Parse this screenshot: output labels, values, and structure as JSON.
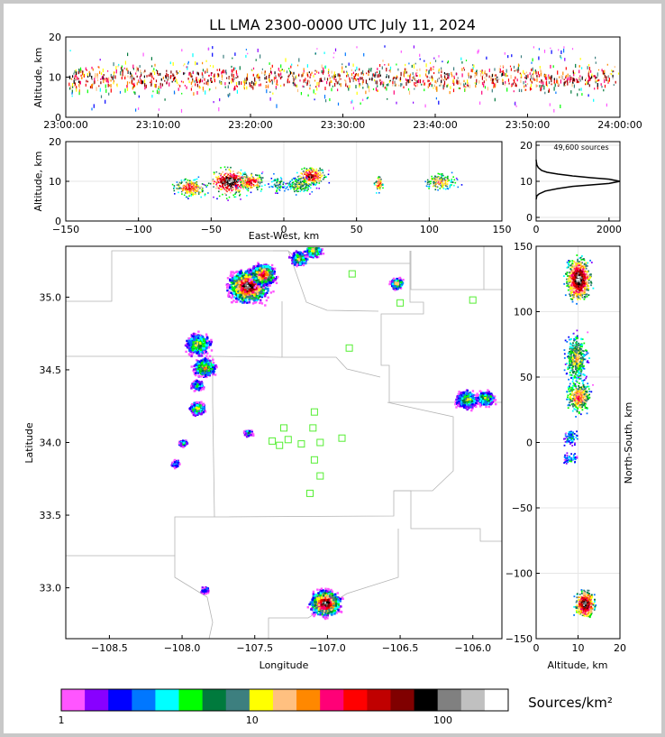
{
  "title": "LL LMA 2300-0000 UTC July 11, 2024",
  "panels": {
    "time_height": {
      "ylabel": "Altitude, km",
      "yticks": [
        "0",
        "10",
        "20"
      ],
      "xticks": [
        "23:00:00",
        "23:10:00",
        "23:20:00",
        "23:30:00",
        "23:40:00",
        "23:50:00",
        "24:00:00"
      ]
    },
    "ew_height": {
      "ylabel": "Altitude, km",
      "xlabel": "East-West, km",
      "yticks": [
        "0",
        "10",
        "20"
      ],
      "xticks": [
        "−150",
        "−100",
        "−50",
        "0",
        "50",
        "100",
        "150"
      ]
    },
    "histogram": {
      "annotation": "49,600 sources",
      "yticks": [
        "0",
        "10",
        "20"
      ],
      "xticks": [
        "0",
        "2000"
      ]
    },
    "plan": {
      "xlabel": "Longitude",
      "ylabel": "Latitude",
      "xticks": [
        "−108.5",
        "−108.0",
        "−107.5",
        "−107.0",
        "−106.5",
        "−106.0"
      ],
      "yticks": [
        "33.0",
        "33.5",
        "34.0",
        "34.5",
        "35.0"
      ]
    },
    "height_ns": {
      "xlabel": "Altitude, km",
      "ylabel": "North-South, km",
      "yticks": [
        "−150",
        "−100",
        "−50",
        "0",
        "50",
        "100",
        "150"
      ],
      "xticks": [
        "0",
        "10",
        "20"
      ]
    }
  },
  "colorbar": {
    "label": "Sources/km²",
    "ticks": [
      "1",
      "10",
      "100"
    ],
    "colors": [
      "#ff55ff",
      "#8800ff",
      "#0000ff",
      "#0077ff",
      "#00ffff",
      "#00ff00",
      "#007a3d",
      "#3d7f7f",
      "#ffff00",
      "#ffc080",
      "#ff8800",
      "#ff0077",
      "#ff0000",
      "#c00000",
      "#800000",
      "#000000",
      "#808080",
      "#c0c0c0",
      "#ffffff"
    ]
  },
  "chart_data": [
    {
      "type": "heatmap",
      "panel": "time_height",
      "x_range": [
        "23:00:00",
        "24:00:00"
      ],
      "ylim": [
        0,
        20
      ],
      "grid": true,
      "band": {
        "center_alt_km": 10,
        "core_range_km": [
          7,
          13
        ],
        "sparse_range_km": [
          2,
          18
        ]
      }
    },
    {
      "type": "heatmap",
      "panel": "ew_height",
      "xlim": [
        -150,
        150
      ],
      "ylim": [
        0,
        20
      ],
      "grid": true,
      "clusters": [
        {
          "x": -65,
          "alt": 8.5,
          "x_spread": 10,
          "alt_spread": 2,
          "peak": 0.75
        },
        {
          "x": -38,
          "alt": 10,
          "x_spread": 12,
          "alt_spread": 3,
          "peak": 1.0
        },
        {
          "x": -23,
          "alt": 10,
          "x_spread": 8,
          "alt_spread": 2,
          "peak": 0.8
        },
        {
          "x": -5,
          "alt": 9.5,
          "x_spread": 5,
          "alt_spread": 2,
          "peak": 0.45
        },
        {
          "x": 18,
          "alt": 11.5,
          "x_spread": 9,
          "alt_spread": 2,
          "peak": 0.85
        },
        {
          "x": 10,
          "alt": 9,
          "x_spread": 10,
          "alt_spread": 2,
          "peak": 0.5
        },
        {
          "x": 65,
          "alt": 9.5,
          "x_spread": 3,
          "alt_spread": 2,
          "peak": 0.7
        },
        {
          "x": 107,
          "alt": 10,
          "x_spread": 10,
          "alt_spread": 2,
          "peak": 0.6
        }
      ]
    },
    {
      "type": "line",
      "panel": "histogram",
      "xlabel": "",
      "ylabel": "",
      "xlim": [
        0,
        2300
      ],
      "ylim": [
        0,
        20
      ],
      "points": [
        [
          0,
          5
        ],
        [
          20,
          6
        ],
        [
          80,
          6.5
        ],
        [
          250,
          7.3
        ],
        [
          600,
          8
        ],
        [
          1000,
          8.6
        ],
        [
          1500,
          9
        ],
        [
          2000,
          9.4
        ],
        [
          2300,
          10
        ],
        [
          2000,
          10.6
        ],
        [
          1500,
          11
        ],
        [
          1000,
          11.5
        ],
        [
          600,
          12
        ],
        [
          300,
          12.5
        ],
        [
          150,
          13
        ],
        [
          60,
          13.8
        ],
        [
          20,
          14.5
        ],
        [
          5,
          15.5
        ],
        [
          0,
          16
        ]
      ]
    },
    {
      "type": "heatmap",
      "panel": "plan",
      "xlim": [
        -108.8,
        -105.8
      ],
      "ylim": [
        32.65,
        35.35
      ],
      "clusters": [
        {
          "lon": -107.55,
          "lat": 35.08,
          "r": 0.09,
          "peak": 1.0
        },
        {
          "lon": -107.45,
          "lat": 35.16,
          "r": 0.06,
          "peak": 0.8
        },
        {
          "lon": -107.2,
          "lat": 35.27,
          "r": 0.04,
          "peak": 0.5
        },
        {
          "lon": -107.1,
          "lat": 35.33,
          "r": 0.04,
          "peak": 0.55
        },
        {
          "lon": -106.53,
          "lat": 35.1,
          "r": 0.03,
          "peak": 0.6
        },
        {
          "lon": -107.9,
          "lat": 34.68,
          "r": 0.06,
          "peak": 0.5
        },
        {
          "lon": -107.85,
          "lat": 34.52,
          "r": 0.05,
          "peak": 0.55
        },
        {
          "lon": -107.9,
          "lat": 34.4,
          "r": 0.03,
          "peak": 0.35
        },
        {
          "lon": -107.9,
          "lat": 34.24,
          "r": 0.035,
          "peak": 0.5
        },
        {
          "lon": -108.0,
          "lat": 34.0,
          "r": 0.02,
          "peak": 0.3
        },
        {
          "lon": -108.05,
          "lat": 33.86,
          "r": 0.02,
          "peak": 0.25
        },
        {
          "lon": -107.55,
          "lat": 34.07,
          "r": 0.02,
          "peak": 0.3
        },
        {
          "lon": -106.05,
          "lat": 34.3,
          "r": 0.05,
          "peak": 0.5
        },
        {
          "lon": -105.92,
          "lat": 34.31,
          "r": 0.04,
          "peak": 0.5
        },
        {
          "lon": -107.02,
          "lat": 32.9,
          "r": 0.07,
          "peak": 1.0
        },
        {
          "lon": -107.85,
          "lat": 32.99,
          "r": 0.02,
          "peak": 0.25
        }
      ],
      "stations": [
        [
          -106.83,
          35.16
        ],
        [
          -106.5,
          34.96
        ],
        [
          -106.0,
          34.98
        ],
        [
          -106.85,
          34.65
        ],
        [
          -107.09,
          34.21
        ],
        [
          -107.3,
          34.1
        ],
        [
          -107.1,
          34.1
        ],
        [
          -107.38,
          34.01
        ],
        [
          -107.27,
          34.02
        ],
        [
          -107.33,
          33.98
        ],
        [
          -107.18,
          33.99
        ],
        [
          -107.05,
          34.0
        ],
        [
          -106.9,
          34.03
        ],
        [
          -107.09,
          33.88
        ],
        [
          -107.05,
          33.77
        ],
        [
          -107.12,
          33.65
        ]
      ]
    },
    {
      "type": "heatmap",
      "panel": "height_ns",
      "xlim": [
        0,
        20
      ],
      "ylim": [
        -150,
        150
      ],
      "grid": true,
      "clusters": [
        {
          "alt": 10,
          "ns": 125,
          "alt_spread": 2.5,
          "ns_spread": 14,
          "peak": 1.0
        },
        {
          "alt": 9.5,
          "ns": 65,
          "alt_spread": 2.2,
          "ns_spread": 16,
          "peak": 0.55
        },
        {
          "alt": 10,
          "ns": 35,
          "alt_spread": 2.5,
          "ns_spread": 10,
          "peak": 0.7
        },
        {
          "alt": 8,
          "ns": 4,
          "alt_spread": 1.5,
          "ns_spread": 5,
          "peak": 0.3
        },
        {
          "alt": 8,
          "ns": -12,
          "alt_spread": 1.5,
          "ns_spread": 4,
          "peak": 0.25
        },
        {
          "alt": 11.5,
          "ns": -123,
          "alt_spread": 2,
          "ns_spread": 9,
          "peak": 1.0
        }
      ]
    }
  ]
}
